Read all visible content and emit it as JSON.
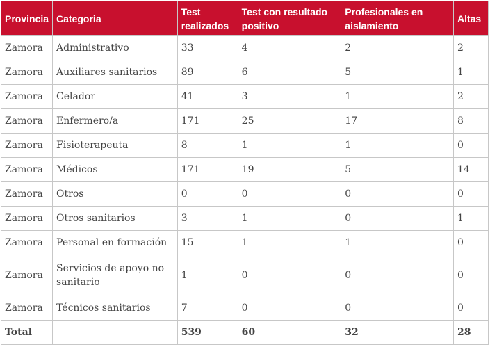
{
  "table": {
    "headers": [
      "Provincia",
      "Categoria",
      "Test realizados",
      "Test con resultado positivo",
      "Profesionales en aislamiento",
      "Altas"
    ],
    "rows": [
      [
        "Zamora",
        "Administrativo",
        "33",
        "4",
        "2",
        "2"
      ],
      [
        "Zamora",
        "Auxiliares sanitarios",
        "89",
        "6",
        "5",
        "1"
      ],
      [
        "Zamora",
        "Celador",
        "41",
        "3",
        "1",
        "2"
      ],
      [
        "Zamora",
        "Enfermero/a",
        "171",
        "25",
        "17",
        "8"
      ],
      [
        "Zamora",
        "Fisioterapeuta",
        "8",
        "1",
        "1",
        "0"
      ],
      [
        "Zamora",
        "Médicos",
        "171",
        "19",
        "5",
        "14"
      ],
      [
        "Zamora",
        "Otros",
        "0",
        "0",
        "0",
        "0"
      ],
      [
        "Zamora",
        "Otros sanitarios",
        "3",
        "1",
        "0",
        "1"
      ],
      [
        "Zamora",
        "Personal en formación",
        "15",
        "1",
        "1",
        "0"
      ],
      [
        "Zamora",
        "Servicios de apoyo no sanitario",
        "1",
        "0",
        "0",
        "0"
      ],
      [
        "Zamora",
        "Técnicos sanitarios",
        "7",
        "0",
        "0",
        "0"
      ]
    ],
    "total": [
      "Total",
      "",
      "539",
      "60",
      "32",
      "28"
    ]
  },
  "colors": {
    "header_bg": "#c8102e",
    "header_text": "#ffffff",
    "border": "#c7c7c7",
    "text": "#444444"
  }
}
